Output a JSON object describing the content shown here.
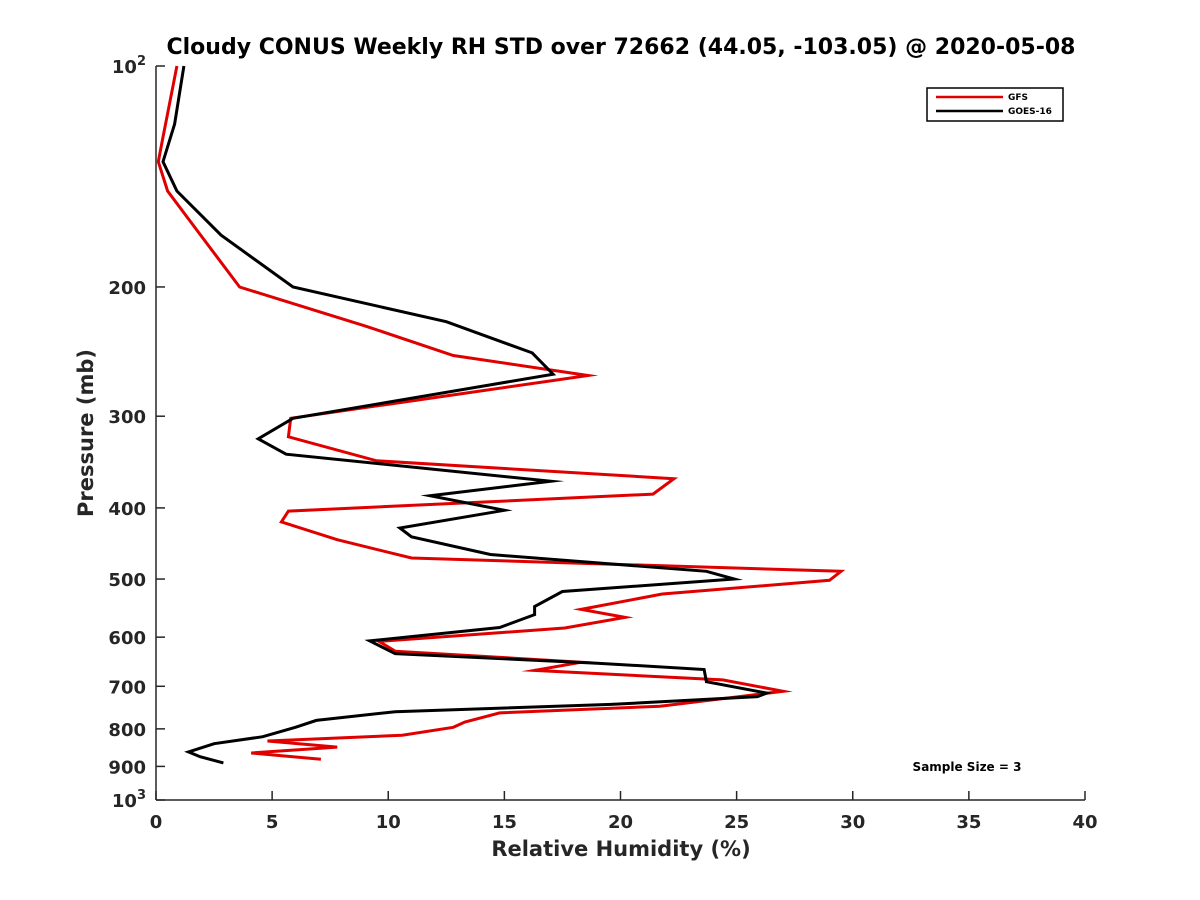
{
  "chart_data": {
    "type": "line",
    "title": "Cloudy CONUS Weekly RH STD over 72662 (44.05, -103.05) @ 2020-05-08",
    "xlabel": "Relative Humidity (%)",
    "ylabel": "Pressure (mb)",
    "xlim": [
      0,
      40
    ],
    "ylim": [
      100,
      1000
    ],
    "y_scale": "log",
    "y_reversed": true,
    "x_ticks": [
      "0",
      "5",
      "10",
      "15",
      "20",
      "25",
      "30",
      "35",
      "40"
    ],
    "y_ticks": [
      {
        "value": 100,
        "label": "10",
        "sup": "2"
      },
      {
        "value": 200,
        "label": "200",
        "sup": ""
      },
      {
        "value": 300,
        "label": "300",
        "sup": ""
      },
      {
        "value": 400,
        "label": "400",
        "sup": ""
      },
      {
        "value": 500,
        "label": "500",
        "sup": ""
      },
      {
        "value": 600,
        "label": "600",
        "sup": ""
      },
      {
        "value": 700,
        "label": "700",
        "sup": ""
      },
      {
        "value": 800,
        "label": "800",
        "sup": ""
      },
      {
        "value": 900,
        "label": "900",
        "sup": ""
      },
      {
        "value": 1000,
        "label": "10",
        "sup": "3"
      }
    ],
    "grid": false,
    "legend_position": "top-right",
    "annotation": "Sample Size = 3",
    "series": [
      {
        "name": "GFS",
        "color": "#e00000",
        "points": [
          [
            0.9,
            100
          ],
          [
            0.3,
            125
          ],
          [
            0.1,
            135
          ],
          [
            0.5,
            148
          ],
          [
            1.8,
            168
          ],
          [
            3.6,
            200
          ],
          [
            9.0,
            226
          ],
          [
            12.8,
            248
          ],
          [
            18.6,
            264
          ],
          [
            5.8,
            302
          ],
          [
            5.7,
            320
          ],
          [
            9.5,
            345
          ],
          [
            22.3,
            365
          ],
          [
            21.4,
            383
          ],
          [
            5.7,
            404
          ],
          [
            5.4,
            418
          ],
          [
            7.8,
            442
          ],
          [
            11.0,
            468
          ],
          [
            29.5,
            488
          ],
          [
            29.0,
            502
          ],
          [
            21.8,
            524
          ],
          [
            18.3,
            550
          ],
          [
            20.2,
            564
          ],
          [
            17.6,
            583
          ],
          [
            9.6,
            608
          ],
          [
            10.3,
            627
          ],
          [
            18.3,
            649
          ],
          [
            16.3,
            666
          ],
          [
            24.4,
            686
          ],
          [
            27.0,
            711
          ],
          [
            21.7,
            745
          ],
          [
            14.8,
            761
          ],
          [
            13.3,
            783
          ],
          [
            12.8,
            796
          ],
          [
            10.6,
            816
          ],
          [
            4.8,
            831
          ],
          [
            7.8,
            847
          ],
          [
            4.1,
            863
          ],
          [
            7.1,
            880
          ]
        ]
      },
      {
        "name": "GOES-16",
        "color": "#000000",
        "points": [
          [
            1.2,
            100
          ],
          [
            0.8,
            120
          ],
          [
            0.3,
            135
          ],
          [
            0.9,
            148
          ],
          [
            2.8,
            170
          ],
          [
            5.9,
            200
          ],
          [
            12.5,
            223
          ],
          [
            16.2,
            246
          ],
          [
            17.1,
            263
          ],
          [
            5.9,
            302
          ],
          [
            4.4,
            322
          ],
          [
            5.6,
            338
          ],
          [
            17.0,
            368
          ],
          [
            11.8,
            385
          ],
          [
            15.0,
            403
          ],
          [
            10.5,
            426
          ],
          [
            11.0,
            438
          ],
          [
            14.4,
            463
          ],
          [
            23.7,
            488
          ],
          [
            24.9,
            500
          ],
          [
            17.5,
            520
          ],
          [
            16.3,
            545
          ],
          [
            16.3,
            559
          ],
          [
            14.8,
            582
          ],
          [
            9.2,
            607
          ],
          [
            10.3,
            632
          ],
          [
            19.0,
            651
          ],
          [
            23.6,
            664
          ],
          [
            23.7,
            690
          ],
          [
            26.3,
            715
          ],
          [
            25.9,
            723
          ],
          [
            19.6,
            741
          ],
          [
            10.3,
            758
          ],
          [
            6.9,
            779
          ],
          [
            6.0,
            796
          ],
          [
            4.6,
            820
          ],
          [
            2.5,
            838
          ],
          [
            1.4,
            860
          ],
          [
            1.9,
            873
          ],
          [
            2.9,
            890
          ]
        ]
      }
    ]
  }
}
